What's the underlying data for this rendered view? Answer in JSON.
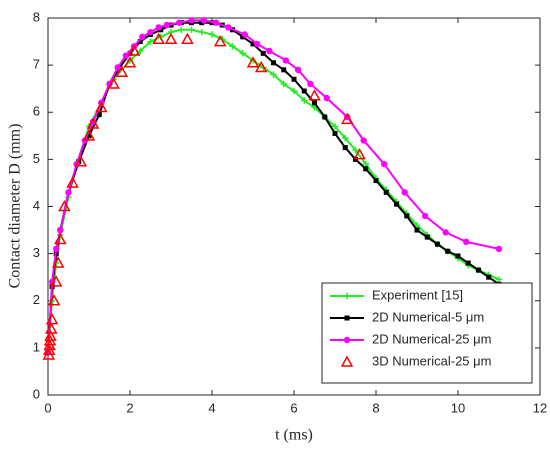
{
  "chart_data": {
    "type": "line",
    "xlabel": "t (ms)",
    "ylabel": "Contact diameter D (mm)",
    "xlim": [
      0,
      12
    ],
    "xticks": [
      0,
      2,
      4,
      6,
      8,
      10,
      12
    ],
    "ylim": [
      0,
      8
    ],
    "yticks": [
      0,
      1,
      2,
      3,
      4,
      5,
      6,
      7,
      8
    ],
    "grid": false,
    "legend": "lower right",
    "series": [
      {
        "name": "Experiment [15]",
        "color": "#22ee22",
        "marker": "plus",
        "line": true,
        "x": [
          0,
          0.1,
          0.2,
          0.3,
          0.5,
          0.7,
          1.0,
          1.3,
          1.6,
          2.0,
          2.25,
          2.5,
          2.75,
          3.0,
          3.25,
          3.5,
          3.75,
          4.0,
          4.25,
          4.5,
          4.75,
          5.0,
          5.25,
          5.5,
          5.75,
          6.0,
          6.25,
          6.5,
          6.75,
          7.0,
          7.25,
          7.5,
          7.75,
          8.0,
          8.25,
          8.5,
          8.75,
          9.0,
          9.25,
          9.5,
          9.75,
          10.0,
          10.25,
          10.5,
          10.75,
          11.0
        ],
        "values": [
          0.9,
          2.0,
          2.8,
          3.4,
          4.2,
          4.9,
          5.7,
          6.2,
          6.7,
          7.1,
          7.3,
          7.5,
          7.6,
          7.7,
          7.75,
          7.75,
          7.7,
          7.65,
          7.55,
          7.4,
          7.25,
          7.1,
          6.95,
          6.8,
          6.6,
          6.45,
          6.25,
          6.1,
          5.9,
          5.7,
          5.45,
          5.2,
          4.9,
          4.6,
          4.35,
          4.1,
          3.85,
          3.6,
          3.4,
          3.2,
          3.05,
          2.9,
          2.75,
          2.65,
          2.55,
          2.45
        ]
      },
      {
        "name": "2D Numerical-5 μm",
        "color": "#000000",
        "marker": "square",
        "line": true,
        "x": [
          0,
          0.1,
          0.2,
          0.3,
          0.5,
          0.75,
          1.0,
          1.25,
          1.5,
          1.75,
          2.0,
          2.25,
          2.5,
          2.75,
          3.0,
          3.25,
          3.5,
          3.75,
          4.0,
          4.25,
          4.5,
          4.75,
          5.0,
          5.25,
          5.5,
          5.75,
          6.0,
          6.25,
          6.5,
          6.75,
          7.0,
          7.25,
          7.5,
          7.75,
          8.0,
          8.25,
          8.5,
          8.75,
          9.0,
          9.25,
          9.5,
          9.75,
          10.0,
          10.25,
          10.5,
          10.75,
          11.0
        ],
        "values": [
          0.9,
          2.3,
          3.0,
          3.5,
          4.3,
          4.95,
          5.5,
          5.95,
          6.6,
          6.95,
          7.25,
          7.5,
          7.65,
          7.75,
          7.85,
          7.9,
          7.9,
          7.9,
          7.9,
          7.85,
          7.75,
          7.6,
          7.45,
          7.25,
          7.05,
          6.9,
          6.7,
          6.45,
          6.2,
          5.9,
          5.55,
          5.25,
          5.0,
          4.8,
          4.55,
          4.3,
          4.05,
          3.8,
          3.5,
          3.35,
          3.2,
          3.05,
          2.95,
          2.8,
          2.65,
          2.5,
          2.35
        ]
      },
      {
        "name": "2D Numerical-25 μm",
        "color": "#ff00ff",
        "marker": "circle",
        "line": true,
        "x": [
          0,
          0.1,
          0.2,
          0.3,
          0.5,
          0.7,
          0.9,
          1.1,
          1.3,
          1.5,
          1.7,
          1.9,
          2.1,
          2.3,
          2.5,
          2.7,
          2.9,
          3.2,
          3.5,
          3.8,
          4.1,
          4.4,
          4.8,
          5.1,
          5.4,
          5.8,
          6.1,
          6.4,
          6.8,
          7.3,
          7.7,
          8.2,
          8.7,
          9.2,
          9.7,
          10.2,
          11.0
        ],
        "values": [
          0.9,
          2.4,
          3.1,
          3.5,
          4.3,
          4.9,
          5.4,
          5.8,
          6.2,
          6.6,
          6.95,
          7.2,
          7.4,
          7.6,
          7.7,
          7.8,
          7.85,
          7.9,
          7.95,
          7.95,
          7.9,
          7.8,
          7.65,
          7.45,
          7.3,
          7.1,
          6.9,
          6.6,
          6.3,
          5.9,
          5.4,
          4.9,
          4.3,
          3.8,
          3.45,
          3.25,
          3.1
        ]
      },
      {
        "name": "3D Numerical-25 μm",
        "color": "#ff0000",
        "marker": "triangle",
        "line": false,
        "x": [
          0.02,
          0.03,
          0.04,
          0.05,
          0.06,
          0.08,
          0.1,
          0.15,
          0.2,
          0.25,
          0.3,
          0.4,
          0.6,
          0.8,
          1.0,
          1.1,
          1.3,
          1.6,
          1.8,
          2.0,
          2.1,
          2.7,
          3.0,
          3.4,
          4.2,
          5.0,
          5.2,
          6.5,
          7.3,
          7.6
        ],
        "values": [
          0.85,
          0.95,
          1.05,
          1.15,
          1.25,
          1.4,
          1.6,
          2.0,
          2.4,
          2.8,
          3.3,
          4.0,
          4.5,
          4.95,
          5.5,
          5.75,
          6.1,
          6.6,
          6.85,
          7.05,
          7.3,
          7.55,
          7.55,
          7.55,
          7.5,
          7.05,
          6.95,
          6.35,
          5.85,
          5.1
        ]
      }
    ]
  }
}
